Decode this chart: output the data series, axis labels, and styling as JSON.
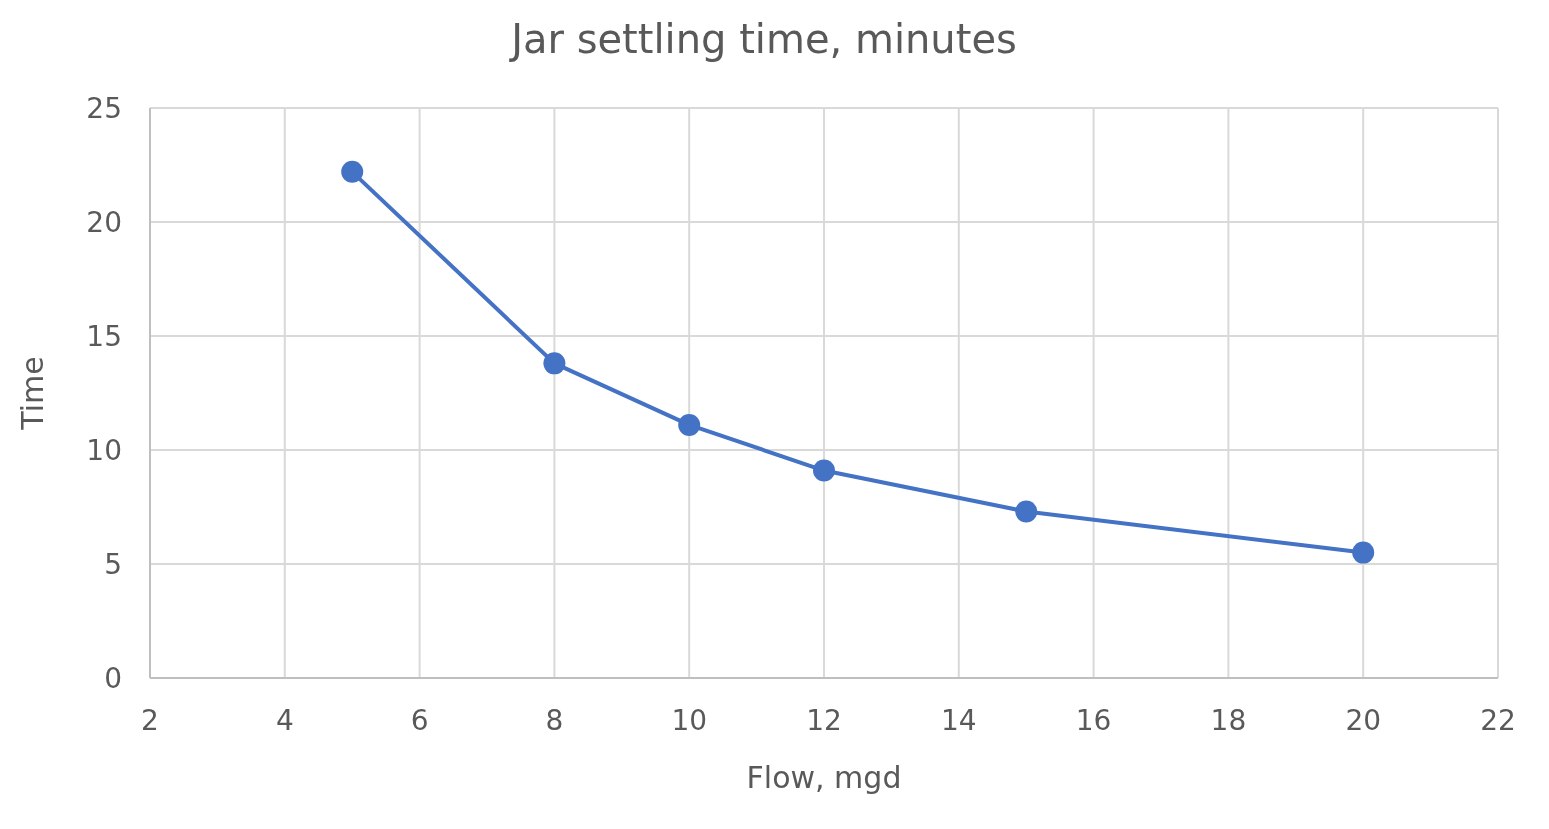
{
  "chart_data": {
    "type": "line",
    "title": "Jar settling time, minutes",
    "xlabel": "Flow, mgd",
    "ylabel": "Time",
    "x": [
      5,
      8,
      10,
      12,
      15,
      20
    ],
    "series": [
      {
        "color": "#4472c4",
        "values": [
          22.2,
          13.8,
          11.1,
          9.1,
          7.3,
          5.5
        ]
      }
    ],
    "xlim": [
      2,
      22
    ],
    "xticks": [
      2,
      4,
      6,
      8,
      10,
      12,
      14,
      16,
      18,
      20,
      22
    ],
    "ylim": [
      0,
      25
    ],
    "yticks": [
      0,
      5,
      10,
      15,
      20,
      25
    ],
    "grid": true,
    "marker": "circle",
    "line_style": "solid"
  }
}
